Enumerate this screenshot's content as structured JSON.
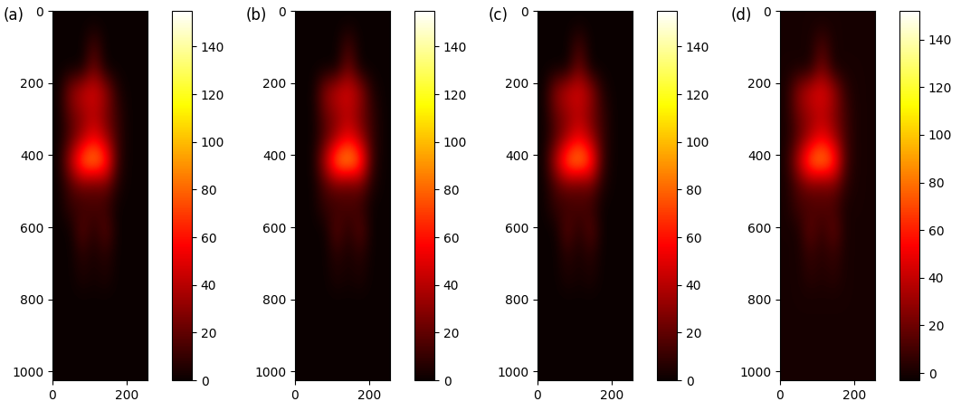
{
  "chart_data": [
    {
      "type": "heatmap",
      "title": "(a)",
      "color": "hot",
      "xlim": [
        0,
        256
      ],
      "ylim": [
        1024,
        0
      ],
      "xticks": [
        0,
        200
      ],
      "yticks": [
        0,
        200,
        400,
        600,
        800,
        1000
      ],
      "colorbar_range": [
        0,
        155
      ],
      "colorbar_ticks": [
        0,
        20,
        40,
        60,
        80,
        100,
        120,
        140
      ],
      "cells": [
        [
          0,
          0,
          0,
          0,
          0,
          0,
          0,
          0
        ],
        [
          0,
          0,
          0,
          15,
          0,
          0,
          0,
          0
        ],
        [
          0,
          0,
          0,
          25,
          0,
          0,
          0,
          0
        ],
        [
          0,
          30,
          45,
          50,
          35,
          5,
          0,
          0
        ],
        [
          0,
          20,
          30,
          40,
          25,
          10,
          0,
          0
        ],
        [
          0,
          15,
          35,
          55,
          35,
          10,
          0,
          0
        ],
        [
          0,
          40,
          85,
          95,
          75,
          10,
          0,
          0
        ],
        [
          0,
          15,
          25,
          20,
          25,
          5,
          0,
          0
        ],
        [
          0,
          10,
          10,
          15,
          10,
          0,
          0,
          0
        ],
        [
          0,
          0,
          20,
          5,
          20,
          0,
          0,
          0
        ],
        [
          0,
          0,
          8,
          3,
          8,
          0,
          0,
          0
        ],
        [
          0,
          0,
          5,
          2,
          5,
          0,
          0,
          0
        ],
        [
          0,
          0,
          0,
          0,
          0,
          0,
          0,
          0
        ],
        [
          0,
          0,
          0,
          0,
          0,
          0,
          0,
          0
        ],
        [
          0,
          0,
          0,
          0,
          0,
          0,
          0,
          0
        ],
        [
          0,
          0,
          0,
          0,
          0,
          0,
          0,
          0
        ]
      ]
    },
    {
      "type": "heatmap",
      "title": "(b)",
      "color": "hot",
      "xlim": [
        0,
        256
      ],
      "ylim": [
        1024,
        0
      ],
      "xticks": [
        0,
        200
      ],
      "yticks": [
        0,
        200,
        400,
        600,
        800,
        1000
      ],
      "colorbar_range": [
        0,
        155
      ],
      "colorbar_ticks": [
        0,
        20,
        40,
        60,
        80,
        100,
        120,
        140
      ],
      "cells": [
        [
          0,
          0,
          0,
          0,
          0,
          0,
          0,
          0
        ],
        [
          0,
          0,
          0,
          0,
          15,
          0,
          0,
          0
        ],
        [
          0,
          0,
          0,
          0,
          25,
          0,
          0,
          0
        ],
        [
          0,
          0,
          30,
          45,
          50,
          35,
          5,
          0
        ],
        [
          0,
          0,
          20,
          30,
          40,
          25,
          10,
          0
        ],
        [
          0,
          0,
          15,
          35,
          55,
          35,
          10,
          0
        ],
        [
          0,
          0,
          40,
          90,
          100,
          80,
          10,
          0
        ],
        [
          0,
          0,
          15,
          25,
          20,
          25,
          5,
          0
        ],
        [
          0,
          0,
          10,
          10,
          15,
          10,
          0,
          0
        ],
        [
          0,
          0,
          0,
          20,
          5,
          20,
          0,
          0
        ],
        [
          0,
          0,
          0,
          8,
          3,
          8,
          0,
          0
        ],
        [
          0,
          0,
          0,
          5,
          2,
          5,
          0,
          0
        ],
        [
          0,
          0,
          0,
          0,
          0,
          0,
          0,
          0
        ],
        [
          0,
          0,
          0,
          0,
          0,
          0,
          0,
          0
        ],
        [
          0,
          0,
          0,
          0,
          0,
          0,
          0,
          0
        ],
        [
          0,
          0,
          0,
          0,
          0,
          0,
          0,
          0
        ]
      ]
    },
    {
      "type": "heatmap",
      "title": "(c)",
      "color": "hot",
      "xlim": [
        0,
        256
      ],
      "ylim": [
        1024,
        0
      ],
      "xticks": [
        0,
        200
      ],
      "yticks": [
        0,
        200,
        400,
        600,
        800,
        1000
      ],
      "colorbar_range": [
        0,
        155
      ],
      "colorbar_ticks": [
        0,
        20,
        40,
        60,
        80,
        100,
        120,
        140
      ],
      "cells": [
        [
          0,
          0,
          0,
          0,
          0,
          0,
          0,
          0
        ],
        [
          0,
          0,
          0,
          15,
          0,
          0,
          0,
          0
        ],
        [
          0,
          0,
          0,
          25,
          0,
          0,
          0,
          0
        ],
        [
          0,
          30,
          45,
          50,
          35,
          5,
          0,
          0
        ],
        [
          0,
          20,
          30,
          40,
          25,
          10,
          0,
          0
        ],
        [
          0,
          15,
          35,
          55,
          35,
          10,
          0,
          0
        ],
        [
          0,
          40,
          85,
          95,
          75,
          10,
          0,
          0
        ],
        [
          0,
          15,
          25,
          20,
          25,
          5,
          0,
          0
        ],
        [
          0,
          10,
          10,
          15,
          10,
          0,
          0,
          0
        ],
        [
          0,
          0,
          20,
          5,
          20,
          0,
          0,
          0
        ],
        [
          0,
          0,
          8,
          3,
          8,
          0,
          0,
          0
        ],
        [
          0,
          0,
          5,
          2,
          5,
          0,
          0,
          0
        ],
        [
          0,
          0,
          0,
          0,
          0,
          0,
          0,
          0
        ],
        [
          0,
          0,
          0,
          0,
          0,
          0,
          0,
          0
        ],
        [
          0,
          0,
          0,
          0,
          0,
          0,
          0,
          0
        ],
        [
          0,
          0,
          0,
          0,
          0,
          0,
          0,
          0
        ]
      ]
    },
    {
      "type": "heatmap",
      "title": "(d)",
      "color": "hot",
      "xlim": [
        0,
        256
      ],
      "ylim": [
        1024,
        0
      ],
      "xticks": [
        0,
        200
      ],
      "yticks": [
        0,
        200,
        400,
        600,
        800,
        1000
      ],
      "colorbar_range": [
        -3,
        152
      ],
      "colorbar_ticks": [
        0,
        20,
        40,
        60,
        80,
        100,
        120,
        140
      ],
      "cells": [
        [
          0,
          0,
          0,
          0,
          0,
          0,
          0,
          0
        ],
        [
          0,
          0,
          0,
          14,
          0,
          0,
          0,
          0
        ],
        [
          0,
          0,
          0,
          24,
          0,
          0,
          0,
          0
        ],
        [
          0,
          28,
          44,
          50,
          34,
          5,
          0,
          0
        ],
        [
          0,
          20,
          30,
          38,
          25,
          9,
          0,
          0
        ],
        [
          0,
          14,
          34,
          52,
          34,
          9,
          0,
          0
        ],
        [
          0,
          38,
          82,
          92,
          72,
          10,
          0,
          0
        ],
        [
          0,
          14,
          24,
          20,
          24,
          5,
          0,
          0
        ],
        [
          0,
          10,
          10,
          14,
          10,
          0,
          0,
          0
        ],
        [
          0,
          0,
          19,
          5,
          19,
          0,
          0,
          0
        ],
        [
          0,
          0,
          8,
          3,
          8,
          0,
          0,
          0
        ],
        [
          0,
          0,
          5,
          2,
          5,
          0,
          0,
          0
        ],
        [
          0,
          0,
          0,
          0,
          0,
          0,
          0,
          0
        ],
        [
          0,
          0,
          0,
          0,
          0,
          0,
          0,
          0
        ],
        [
          0,
          0,
          0,
          0,
          0,
          0,
          0,
          0
        ],
        [
          0,
          0,
          0,
          0,
          0,
          0,
          0,
          0
        ]
      ]
    }
  ]
}
